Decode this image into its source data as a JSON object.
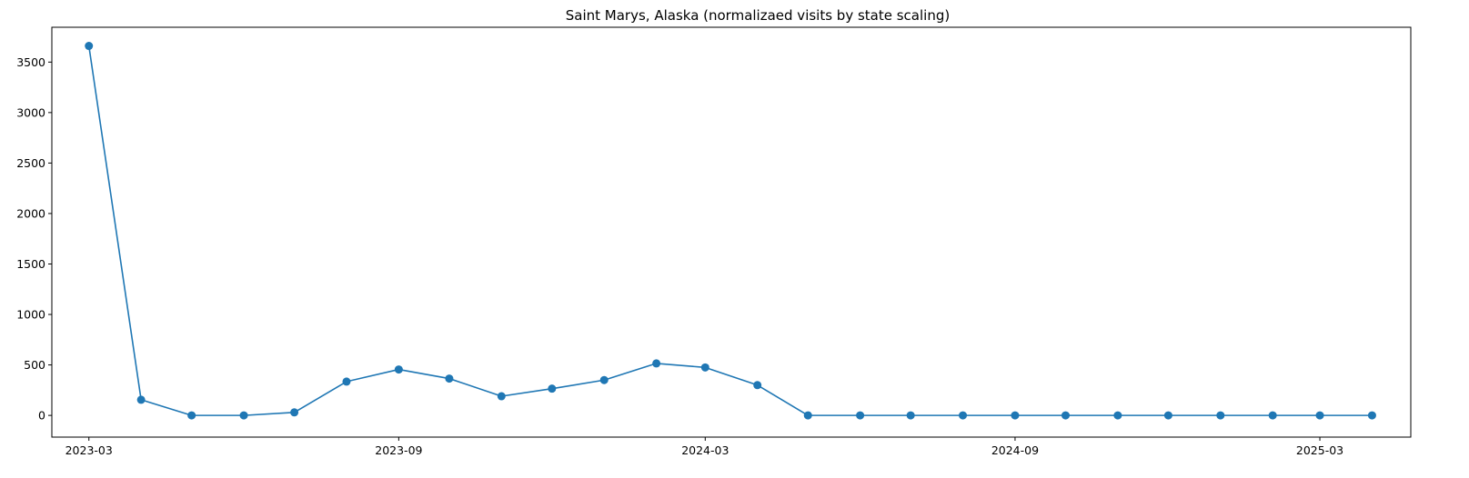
{
  "chart_data": {
    "type": "line",
    "title": "Saint Marys, Alaska (normalizaed visits by state scaling)",
    "xlabel": "",
    "ylabel": "",
    "x": [
      "2023-03-01",
      "2023-04-01",
      "2023-05-01",
      "2023-06-01",
      "2023-07-01",
      "2023-08-01",
      "2023-09-01",
      "2023-10-01",
      "2023-11-01",
      "2023-12-01",
      "2024-01-01",
      "2024-02-01",
      "2024-03-01",
      "2024-04-01",
      "2024-05-01",
      "2024-06-01",
      "2024-07-01",
      "2024-08-01",
      "2024-09-01",
      "2024-10-01",
      "2024-11-01",
      "2024-12-01",
      "2025-01-01",
      "2025-02-01",
      "2025-03-01",
      "2025-04-01"
    ],
    "series": [
      {
        "values": [
          3660,
          155,
          0,
          0,
          30,
          335,
          455,
          365,
          190,
          265,
          350,
          515,
          475,
          300,
          0,
          0,
          0,
          0,
          0,
          0,
          0,
          0,
          0,
          0,
          0,
          0
        ],
        "color": "#1f77b4",
        "marker": "circle"
      }
    ],
    "xticks": [
      "2023-03",
      "2023-09",
      "2024-03",
      "2024-09",
      "2025-03"
    ],
    "yticks": [
      0,
      500,
      1000,
      1500,
      2000,
      2500,
      3000,
      3500
    ],
    "xlim": [
      "2023-02-07",
      "2025-04-24"
    ],
    "ylim": [
      -215,
      3845
    ],
    "grid": false,
    "legend": false
  }
}
